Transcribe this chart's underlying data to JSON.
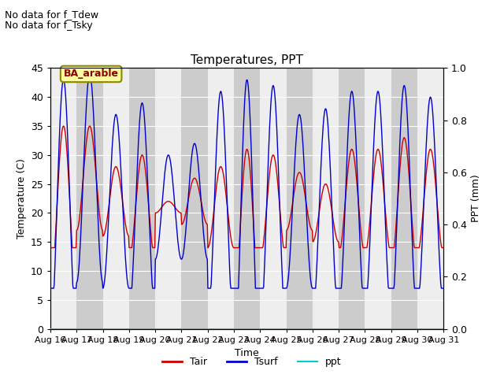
{
  "title": "Temperatures, PPT",
  "xlabel": "Time",
  "ylabel_left": "Temperature (C)",
  "ylabel_right": "PPT (mm)",
  "ylim_left": [
    0,
    45
  ],
  "ylim_right": [
    0.0,
    1.0
  ],
  "yticks_left": [
    0,
    5,
    10,
    15,
    20,
    25,
    30,
    35,
    40,
    45
  ],
  "yticks_right": [
    0.0,
    0.2,
    0.4,
    0.6,
    0.8,
    1.0
  ],
  "n_days": 15,
  "x_labels": [
    "Aug 16",
    "Aug 17",
    "Aug 18",
    "Aug 19",
    "Aug 20",
    "Aug 21",
    "Aug 22",
    "Aug 23",
    "Aug 24",
    "Aug 25",
    "Aug 26",
    "Aug 27",
    "Aug 28",
    "Aug 29",
    "Aug 30",
    "Aug 31"
  ],
  "annotation_text1": "No data for f_Tdew",
  "annotation_text2": "No data for f_Tsky",
  "box_label": "BA_arable",
  "box_facecolor": "#FFFFA0",
  "box_edgecolor": "#888800",
  "tair_color": "#CC0000",
  "tsurf_color": "#0000CC",
  "ppt_color": "#00CCCC",
  "legend_labels": [
    "Tair",
    "Tsurf",
    "ppt"
  ],
  "bg_color": "#ffffff",
  "plot_bg_color": "#e0e0e0",
  "band_color": "#cccccc",
  "white_band_color": "#eeeeee",
  "font_size": 9,
  "title_fontsize": 11,
  "tair_baselines": [
    21,
    26,
    22,
    21,
    21,
    22,
    21,
    18,
    21,
    22,
    20,
    22,
    22,
    22,
    22
  ],
  "tair_amplitudes": [
    14,
    9,
    6,
    9,
    1,
    4,
    7,
    13,
    9,
    5,
    5,
    9,
    9,
    11,
    9
  ],
  "tsurf_baselines": [
    21,
    26,
    22,
    21,
    21,
    22,
    21,
    18,
    21,
    22,
    20,
    22,
    22,
    22,
    22
  ],
  "tsurf_amplitudes": [
    22,
    18,
    15,
    18,
    9,
    10,
    20,
    25,
    21,
    15,
    18,
    19,
    19,
    20,
    18
  ]
}
